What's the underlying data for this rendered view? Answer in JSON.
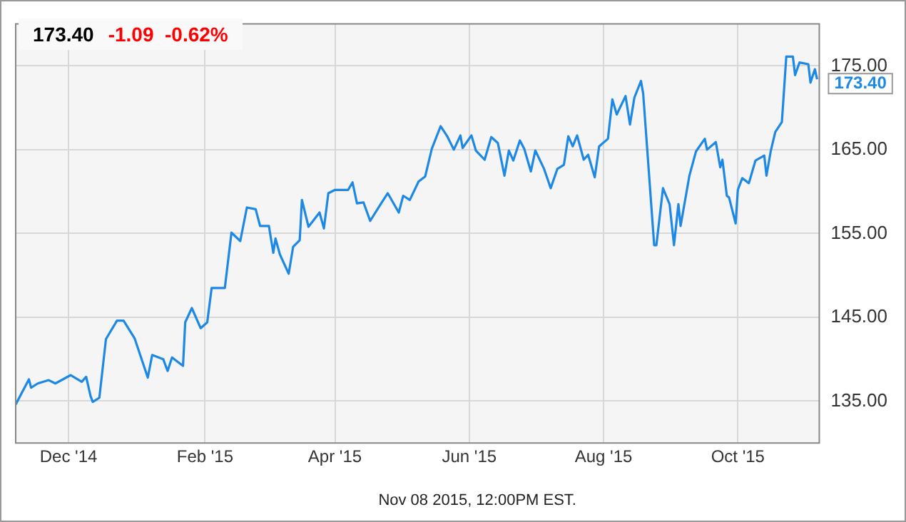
{
  "chart_data": {
    "type": "line",
    "title": "173.40",
    "subtitle": "-1.09  -0.62%",
    "annotations": [
      {
        "text": "173.40",
        "x": "2015-11-06",
        "y": 173.4
      },
      "Nov 08 2015, 12:00PM EST."
    ],
    "x": [
      "2014-11-07",
      "2014-11-10",
      "2014-11-13",
      "2014-11-14",
      "2014-11-17",
      "2014-11-22",
      "2014-11-25",
      "2014-12-02",
      "2014-12-07",
      "2014-12-09",
      "2014-12-11",
      "2014-12-12",
      "2014-12-15",
      "2014-12-18",
      "2014-12-23",
      "2014-12-26",
      "2014-12-31",
      "2015-01-06",
      "2015-01-08",
      "2015-01-13",
      "2015-01-15",
      "2015-01-17",
      "2015-01-22",
      "2015-01-23",
      "2015-01-26",
      "2015-01-30",
      "2015-02-02",
      "2015-02-04",
      "2015-02-06",
      "2015-02-10",
      "2015-02-13",
      "2015-02-17",
      "2015-02-20",
      "2015-02-24",
      "2015-02-26",
      "2015-03-02",
      "2015-03-04",
      "2015-03-05",
      "2015-03-07",
      "2015-03-11",
      "2015-03-13",
      "2015-03-16",
      "2015-03-17",
      "2015-03-20",
      "2015-03-25",
      "2015-03-27",
      "2015-03-29",
      "2015-04-01",
      "2015-04-07",
      "2015-04-09",
      "2015-04-11",
      "2015-04-14",
      "2015-04-17",
      "2015-04-22",
      "2015-04-25",
      "2015-04-30",
      "2015-05-02",
      "2015-05-05",
      "2015-05-09",
      "2015-05-12",
      "2015-05-15",
      "2015-05-19",
      "2015-05-22",
      "2015-05-25",
      "2015-05-28",
      "2015-05-29",
      "2015-06-02",
      "2015-06-04",
      "2015-06-08",
      "2015-06-11",
      "2015-06-14",
      "2015-06-17",
      "2015-06-19",
      "2015-06-21",
      "2015-06-24",
      "2015-06-26",
      "2015-06-29",
      "2015-07-01",
      "2015-07-05",
      "2015-07-08",
      "2015-07-11",
      "2015-07-14",
      "2015-07-16",
      "2015-07-18",
      "2015-07-20",
      "2015-07-23",
      "2015-07-25",
      "2015-07-28",
      "2015-07-30",
      "2015-08-03",
      "2015-08-05",
      "2015-08-07",
      "2015-08-11",
      "2015-08-13",
      "2015-08-15",
      "2015-08-18",
      "2015-08-19",
      "2015-08-24",
      "2015-08-25",
      "2015-08-28",
      "2015-08-31",
      "2015-09-02",
      "2015-09-04",
      "2015-09-05",
      "2015-09-08",
      "2015-09-09",
      "2015-09-12",
      "2015-09-16",
      "2015-09-17",
      "2015-09-21",
      "2015-09-23",
      "2015-09-24",
      "2015-09-26",
      "2015-09-27",
      "2015-09-30",
      "2015-10-01",
      "2015-10-03",
      "2015-10-06",
      "2015-10-09",
      "2015-10-13",
      "2015-10-14",
      "2015-10-16",
      "2015-10-18",
      "2015-10-21",
      "2015-10-23",
      "2015-10-26",
      "2015-10-27",
      "2015-10-29",
      "2015-11-02",
      "2015-11-03",
      "2015-11-05",
      "2015-11-06"
    ],
    "series": [
      {
        "color": "#1e88e5",
        "values": [
          134.6,
          136.1,
          137.6,
          136.6,
          137.1,
          137.5,
          137.1,
          138.1,
          137.3,
          137.9,
          135.6,
          134.9,
          135.4,
          142.4,
          144.6,
          144.6,
          142.5,
          137.8,
          140.5,
          140,
          138.6,
          140.2,
          139.2,
          144.4,
          146.1,
          143.7,
          144.4,
          148.5,
          148.5,
          148.5,
          155.1,
          154.1,
          158.1,
          157.9,
          155.9,
          155.9,
          152.7,
          154.4,
          152.5,
          150.2,
          153.4,
          154.2,
          159,
          155.8,
          157.5,
          155.6,
          159.8,
          160.2,
          160.2,
          161.1,
          158.6,
          158.7,
          156.5,
          158.6,
          159.8,
          157.5,
          159.5,
          159,
          161.2,
          161.8,
          165.1,
          167.8,
          166.6,
          165,
          166.7,
          165.2,
          166.7,
          164.9,
          163.8,
          166.5,
          165.8,
          161.9,
          164.9,
          163.7,
          166.1,
          165.1,
          162.4,
          164.9,
          162.7,
          160.4,
          162.7,
          163.2,
          166.6,
          165.4,
          166.7,
          163.8,
          164.4,
          161.7,
          165.4,
          166.3,
          171,
          169.2,
          171.4,
          168,
          171.2,
          173.2,
          171.7,
          153.6,
          153.6,
          160.4,
          158.5,
          153.6,
          158.5,
          155.9,
          160.4,
          161.9,
          164.8,
          166.3,
          165,
          165.9,
          162.9,
          163.8,
          159.5,
          159.3,
          156.2,
          160.2,
          161.6,
          161,
          163.7,
          164.3,
          161.9,
          164.9,
          167.1,
          168.3,
          176.1,
          176.1,
          173.9,
          175.4,
          175.2,
          173,
          174.6,
          173.4
        ]
      }
    ],
    "xlim": [
      "2014-11-07",
      "2015-11-07"
    ],
    "xticks": [
      {
        "value": "2014-12-01",
        "label": "Dec '14"
      },
      {
        "value": "2015-02-01",
        "label": "Feb '15"
      },
      {
        "value": "2015-04-01",
        "label": "Apr '15"
      },
      {
        "value": "2015-06-01",
        "label": "Jun '15"
      },
      {
        "value": "2015-08-01",
        "label": "Aug '15"
      },
      {
        "value": "2015-10-01",
        "label": "Oct '15"
      }
    ],
    "ylim": [
      130,
      180
    ],
    "yticks": [
      {
        "value": 135,
        "label": "135.00"
      },
      {
        "value": 145,
        "label": "145.00"
      },
      {
        "value": 155,
        "label": "155.00"
      },
      {
        "value": 165,
        "label": "165.00"
      },
      {
        "value": 175,
        "label": "175.00"
      }
    ],
    "grid": true,
    "marker": "none",
    "line_style": "solid"
  }
}
